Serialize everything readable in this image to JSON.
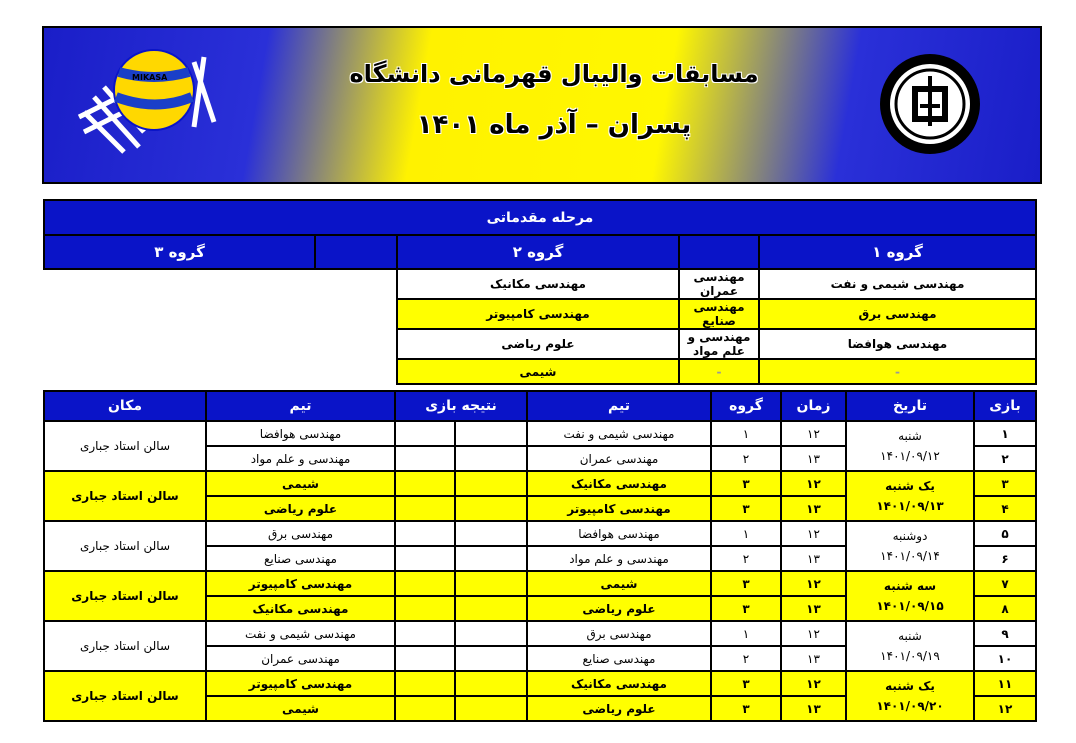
{
  "header": {
    "title": "مسابقات والیبال قهرمانی دانشگاه",
    "subtitle": "پسران – آذر ماه ۱۴۰۱",
    "ball_brand": "MIKASA",
    "logo": "university-emblem"
  },
  "prelim": {
    "title": "مرحله مقدماتی",
    "groups": [
      {
        "name": "گروه ۱",
        "teams": [
          "مهندسی شیمی و نفت",
          "مهندسی برق",
          "مهندسی هوافضا",
          "-"
        ]
      },
      {
        "name": "گروه ۲",
        "teams": [
          "مهندسی عمران",
          "مهندسی صنایع",
          "مهندسی و علم مواد",
          "-"
        ]
      },
      {
        "name": "گروه ۳",
        "teams": [
          "مهندسی مکانیک",
          "مهندسی کامپیوتر",
          "علوم ریاضی",
          "شیمی"
        ]
      }
    ]
  },
  "schedule": {
    "headers": [
      "بازی",
      "تاریخ",
      "زمان",
      "گروه",
      "تیم",
      "نتیجه بازی",
      "تیم",
      "مکان"
    ],
    "days": [
      {
        "day": "شنبه",
        "date": "۱۴۰۱/۰۹/۱۲",
        "venue": "سالن استاد جباری",
        "highlight": false,
        "games": [
          {
            "no": "۱",
            "time": "۱۲",
            "group": "۱",
            "team1": "مهندسی شیمی و نفت",
            "team2": "مهندسی هوافضا"
          },
          {
            "no": "۲",
            "time": "۱۳",
            "group": "۲",
            "team1": "مهندسی عمران",
            "team2": "مهندسی و علم مواد"
          }
        ]
      },
      {
        "day": "یک شنبه",
        "date": "۱۴۰۱/۰۹/۱۳",
        "venue": "سالن استاد جباری",
        "highlight": true,
        "games": [
          {
            "no": "۳",
            "time": "۱۲",
            "group": "۳",
            "team1": "مهندسی مکانیک",
            "team2": "شیمی"
          },
          {
            "no": "۴",
            "time": "۱۳",
            "group": "۳",
            "team1": "مهندسی کامپیوتر",
            "team2": "علوم ریاضی"
          }
        ]
      },
      {
        "day": "دوشنبه",
        "date": "۱۴۰۱/۰۹/۱۴",
        "venue": "سالن استاد جباری",
        "highlight": false,
        "games": [
          {
            "no": "۵",
            "time": "۱۲",
            "group": "۱",
            "team1": "مهندسی هوافضا",
            "team2": "مهندسی برق"
          },
          {
            "no": "۶",
            "time": "۱۳",
            "group": "۲",
            "team1": "مهندسی و علم مواد",
            "team2": "مهندسی صنایع"
          }
        ]
      },
      {
        "day": "سه شنبه",
        "date": "۱۴۰۱/۰۹/۱۵",
        "venue": "سالن استاد جباری",
        "highlight": true,
        "games": [
          {
            "no": "۷",
            "time": "۱۲",
            "group": "۳",
            "team1": "شیمی",
            "team2": "مهندسی کامپیوتر"
          },
          {
            "no": "۸",
            "time": "۱۳",
            "group": "۳",
            "team1": "علوم ریاضی",
            "team2": "مهندسی مکانیک"
          }
        ]
      },
      {
        "day": "شنبه",
        "date": "۱۴۰۱/۰۹/۱۹",
        "venue": "سالن استاد جباری",
        "highlight": false,
        "games": [
          {
            "no": "۹",
            "time": "۱۲",
            "group": "۱",
            "team1": "مهندسی برق",
            "team2": "مهندسی شیمی و نفت"
          },
          {
            "no": "۱۰",
            "time": "۱۳",
            "group": "۲",
            "team1": "مهندسی صنایع",
            "team2": "مهندسی عمران"
          }
        ]
      },
      {
        "day": "یک شنبه",
        "date": "۱۴۰۱/۰۹/۲۰",
        "venue": "سالن استاد جباری",
        "highlight": true,
        "games": [
          {
            "no": "۱۱",
            "time": "۱۲",
            "group": "۳",
            "team1": "مهندسی مکانیک",
            "team2": "مهندسی کامپیوتر"
          },
          {
            "no": "۱۲",
            "time": "۱۳",
            "group": "۳",
            "team1": "علوم ریاضی",
            "team2": "شیمی"
          }
        ]
      }
    ]
  },
  "colors": {
    "blue": "#0a14c8",
    "yellow": "#ffff00"
  }
}
